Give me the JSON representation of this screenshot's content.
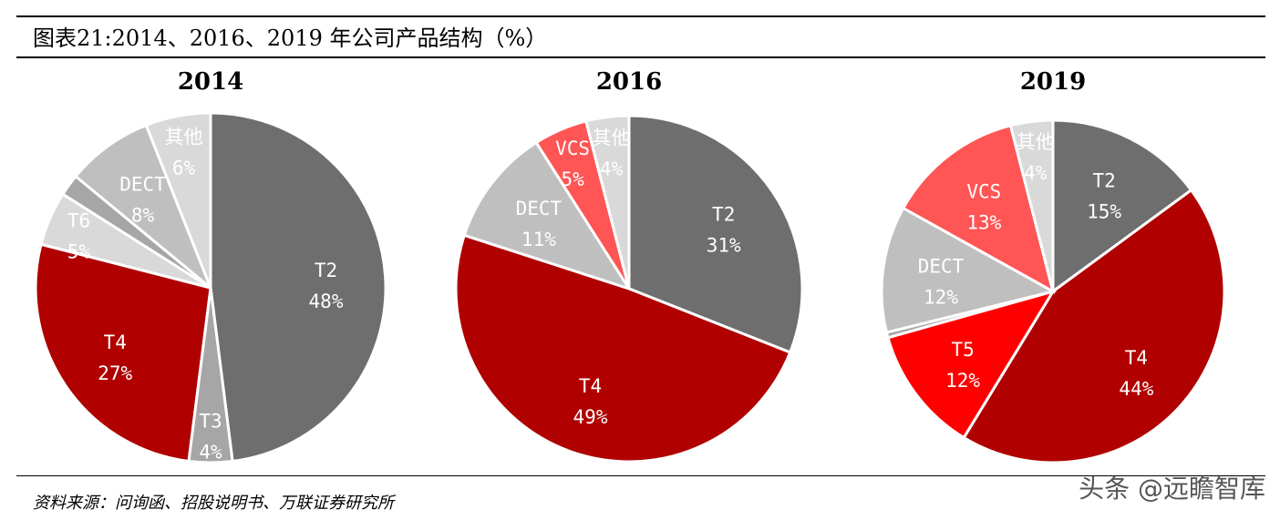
{
  "title": "图表21:2014、2016、2019 年公司产品结构（%）",
  "source": "资料来源：问询函、招股说明书、万联证券研究所",
  "watermark": "头条 @远瞻智库",
  "colors": {
    "T2": "#6e6e6e",
    "T3": "#a6a6a6",
    "T4": "#b00000",
    "T5": "#ff0000",
    "T6": "#d9d9d9",
    "VCS": "#ff5555",
    "DECT": "#bfbfbf",
    "其他": "#d9d9d9",
    "unlabeled": "#a6a6a6"
  },
  "chart_data": [
    {
      "type": "pie",
      "title": "2014",
      "slices": [
        {
          "name": "T2",
          "value": 48
        },
        {
          "name": "T3",
          "value": 4
        },
        {
          "name": "T4",
          "value": 27
        },
        {
          "name": "T6",
          "value": 5
        },
        {
          "name": "",
          "value": 2
        },
        {
          "name": "DECT",
          "value": 8
        },
        {
          "name": "其他",
          "value": 6
        }
      ]
    },
    {
      "type": "pie",
      "title": "2016",
      "slices": [
        {
          "name": "T2",
          "value": 31
        },
        {
          "name": "T4",
          "value": 49
        },
        {
          "name": "DECT",
          "value": 11
        },
        {
          "name": "VCS",
          "value": 5
        },
        {
          "name": "其他",
          "value": 4
        }
      ]
    },
    {
      "type": "pie",
      "title": "2019",
      "slices": [
        {
          "name": "T2",
          "value": 15
        },
        {
          "name": "T4",
          "value": 44
        },
        {
          "name": "T5",
          "value": 12
        },
        {
          "name": "",
          "value": 0.5
        },
        {
          "name": "DECT",
          "value": 12
        },
        {
          "name": "VCS",
          "value": 13
        },
        {
          "name": "其他",
          "value": 4
        }
      ]
    }
  ]
}
